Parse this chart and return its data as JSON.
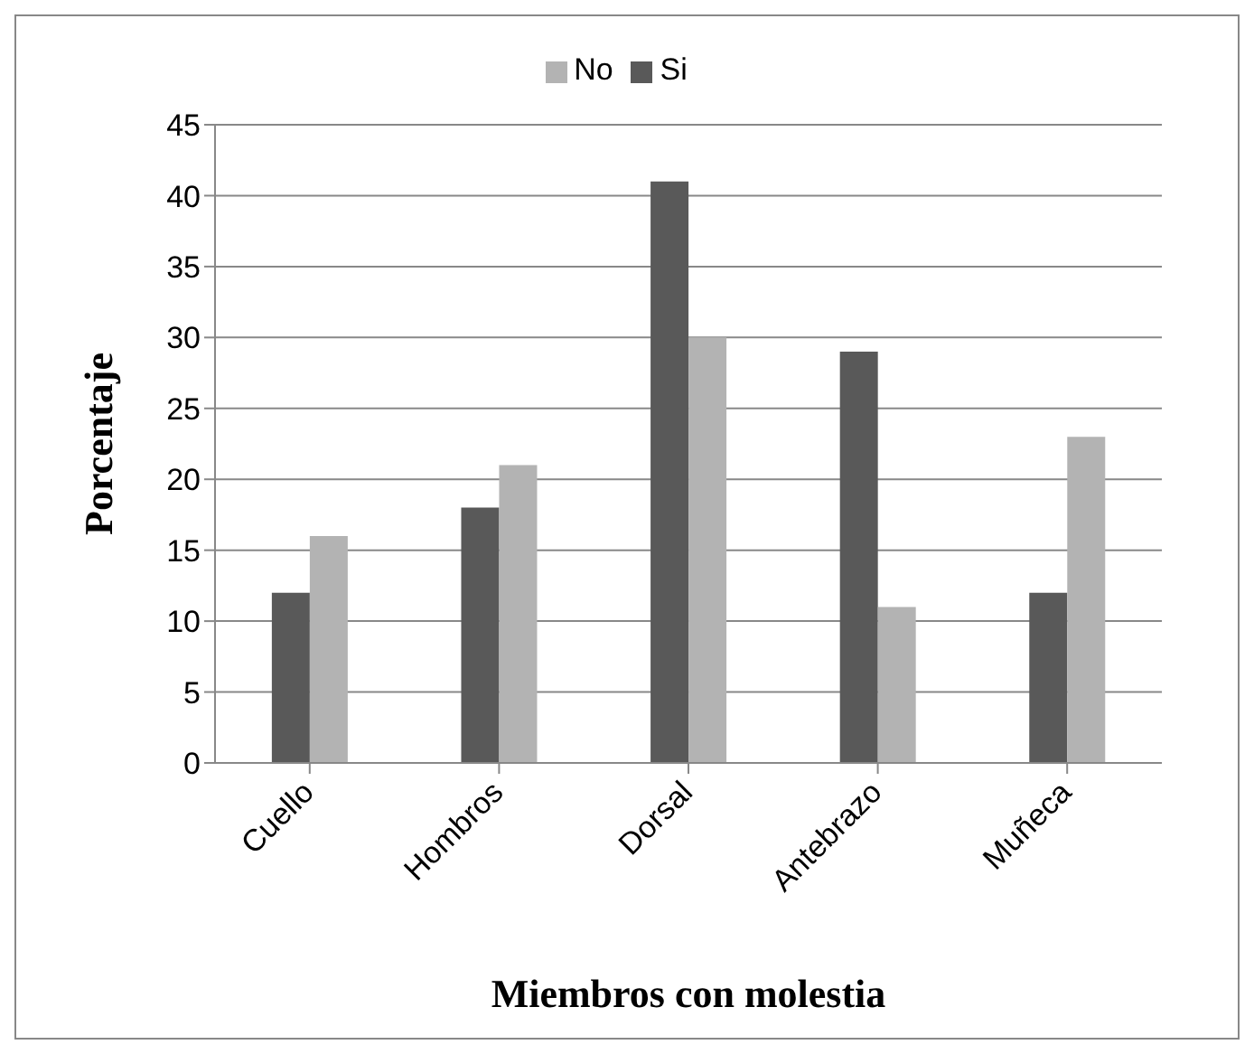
{
  "chart_data": {
    "type": "bar",
    "xlabel": "Miembros con molestia",
    "ylabel": "Porcentaje",
    "categories": [
      "Cuello",
      "Hombros",
      "Dorsal",
      "Antebrazo",
      "Muñeca"
    ],
    "series": [
      {
        "name": "Si",
        "color": "#595959",
        "values": [
          12,
          18,
          41,
          29,
          12
        ]
      },
      {
        "name": "No",
        "color": "#b3b3b3",
        "values": [
          16,
          21,
          30,
          11,
          23
        ]
      }
    ],
    "ylim": [
      0,
      45
    ],
    "yticks": [
      0,
      5,
      10,
      15,
      20,
      25,
      30,
      35,
      40,
      45
    ],
    "grid": "y",
    "legend": "top"
  }
}
